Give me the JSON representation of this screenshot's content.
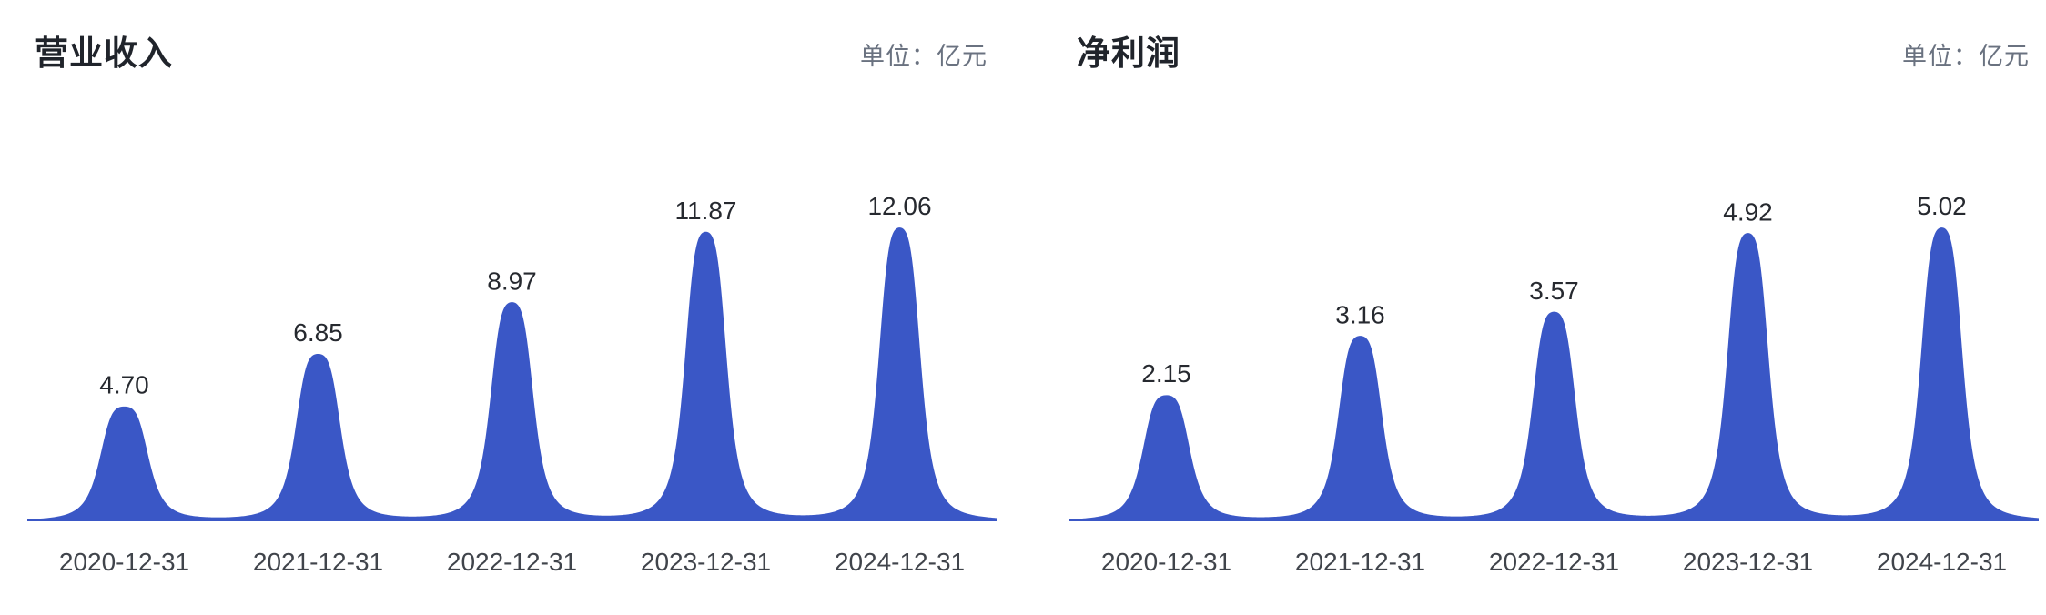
{
  "page": {
    "background": "#FFFFFF"
  },
  "colors": {
    "peak_fill": "#3A57C6",
    "title_text": "#20242B",
    "unit_text": "#6A7280",
    "value_label_text": "#26292F",
    "axis_label_text": "#40444B",
    "background": "#FFFFFF"
  },
  "chart_data": [
    {
      "type": "area",
      "style": "peak-mountain",
      "title": "营业收入",
      "unit_label": "单位：亿元",
      "categories": [
        "2020-12-31",
        "2021-12-31",
        "2022-12-31",
        "2023-12-31",
        "2024-12-31"
      ],
      "values": [
        4.7,
        6.85,
        8.97,
        11.87,
        12.06
      ],
      "value_labels": [
        "4.70",
        "6.85",
        "8.97",
        "11.87",
        "12.06"
      ],
      "xlabel": "",
      "ylabel": "",
      "ylim": [
        0,
        12.06
      ],
      "grid": false,
      "legend": false,
      "series_color": "#3A57C6"
    },
    {
      "type": "area",
      "style": "peak-mountain",
      "title": "净利润",
      "unit_label": "单位：亿元",
      "categories": [
        "2020-12-31",
        "2021-12-31",
        "2022-12-31",
        "2023-12-31",
        "2024-12-31"
      ],
      "values": [
        2.15,
        3.16,
        3.57,
        4.92,
        5.02
      ],
      "value_labels": [
        "2.15",
        "3.16",
        "3.57",
        "4.92",
        "5.02"
      ],
      "xlabel": "",
      "ylabel": "",
      "ylim": [
        0,
        5.02
      ],
      "grid": false,
      "legend": false,
      "series_color": "#3A57C6"
    }
  ]
}
